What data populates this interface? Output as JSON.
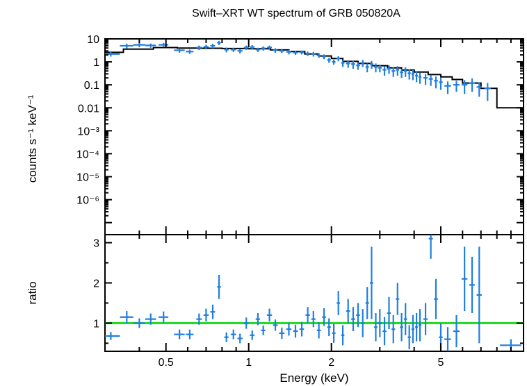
{
  "chart_data": {
    "type": "scatter",
    "title": "Swift–XRT WT spectrum of GRB 050820A",
    "xlabel": "Energy (keV)",
    "xscale": "log",
    "xlim": [
      0.3,
      10
    ],
    "x_ticks": [
      {
        "v": 0.5,
        "label": "0.5"
      },
      {
        "v": 1,
        "label": "1"
      },
      {
        "v": 2,
        "label": "2"
      },
      {
        "v": 5,
        "label": "5"
      }
    ],
    "colors": {
      "data": "#1f7fe0",
      "model": "#000000",
      "unity": "#22dd22"
    },
    "panels": [
      {
        "name": "spectrum",
        "ylabel": "counts s⁻¹ keV⁻¹",
        "yscale": "log",
        "ylim": [
          3e-08,
          10
        ],
        "y_ticks": [
          {
            "v": 10,
            "label": "10"
          },
          {
            "v": 1,
            "label": "1"
          },
          {
            "v": 0.1,
            "label": "0.1"
          },
          {
            "v": 0.01,
            "label": "0.01"
          },
          {
            "v": 0.001,
            "label": "10⁻³"
          },
          {
            "v": 0.0001,
            "label": "10⁻⁴"
          },
          {
            "v": 1e-05,
            "label": "10⁻⁵"
          },
          {
            "v": 1e-06,
            "label": "10⁻⁶"
          }
        ],
        "model_steps": [
          [
            0.3,
            2.6
          ],
          [
            0.35,
            3.6
          ],
          [
            0.45,
            4.2
          ],
          [
            0.55,
            4.0
          ],
          [
            0.65,
            3.9
          ],
          [
            0.8,
            3.8
          ],
          [
            1.0,
            3.7
          ],
          [
            1.2,
            3.3
          ],
          [
            1.4,
            2.8
          ],
          [
            1.6,
            2.2
          ],
          [
            1.8,
            1.8
          ],
          [
            2.0,
            1.4
          ],
          [
            2.2,
            1.05
          ],
          [
            2.5,
            0.85
          ],
          [
            2.8,
            0.68
          ],
          [
            3.2,
            0.55
          ],
          [
            3.6,
            0.44
          ],
          [
            4.0,
            0.36
          ],
          [
            4.5,
            0.28
          ],
          [
            5.0,
            0.22
          ],
          [
            5.5,
            0.17
          ],
          [
            6.0,
            0.12
          ],
          [
            7.0,
            0.07
          ],
          [
            8.0,
            0.01
          ],
          [
            10.0,
            0.01
          ]
        ],
        "points": [
          [
            0.315,
            2.2,
            0.025,
            0.5
          ],
          [
            0.36,
            5.0,
            0.02,
            1.2
          ],
          [
            0.4,
            5.5,
            0.02,
            1.2
          ],
          [
            0.44,
            5.2,
            0.02,
            1.1
          ],
          [
            0.49,
            5.5,
            0.02,
            1.2
          ],
          [
            0.56,
            3.2,
            0.025,
            0.7
          ],
          [
            0.61,
            2.8,
            0.02,
            0.6
          ],
          [
            0.66,
            4.2,
            0.015,
            0.9
          ],
          [
            0.7,
            4.5,
            0.015,
            1.0
          ],
          [
            0.74,
            5.0,
            0.015,
            1.1
          ],
          [
            0.78,
            6.8,
            0.012,
            1.4
          ],
          [
            0.83,
            3.4,
            0.015,
            0.8
          ],
          [
            0.88,
            3.4,
            0.02,
            0.7
          ],
          [
            0.93,
            3.0,
            0.02,
            0.7
          ],
          [
            0.98,
            4.2,
            0.02,
            0.9
          ],
          [
            1.03,
            4.4,
            0.02,
            0.9
          ],
          [
            1.08,
            3.4,
            0.02,
            0.7
          ],
          [
            1.13,
            3.9,
            0.02,
            0.8
          ],
          [
            1.19,
            4.2,
            0.025,
            0.9
          ],
          [
            1.25,
            3.2,
            0.025,
            0.7
          ],
          [
            1.32,
            3.0,
            0.03,
            0.6
          ],
          [
            1.4,
            2.7,
            0.03,
            0.6
          ],
          [
            1.48,
            2.5,
            0.03,
            0.5
          ],
          [
            1.56,
            2.6,
            0.03,
            0.5
          ],
          [
            1.64,
            2.3,
            0.03,
            0.5
          ],
          [
            1.72,
            2.2,
            0.03,
            0.5
          ],
          [
            1.8,
            1.9,
            0.03,
            0.4
          ],
          [
            1.88,
            1.7,
            0.03,
            0.4
          ],
          [
            1.96,
            1.2,
            0.03,
            0.3
          ],
          [
            2.04,
            1.0,
            0.03,
            0.25
          ],
          [
            2.12,
            1.4,
            0.03,
            0.35
          ],
          [
            2.2,
            0.9,
            0.03,
            0.3
          ],
          [
            2.3,
            0.85,
            0.04,
            0.3
          ],
          [
            2.4,
            0.8,
            0.04,
            0.3
          ],
          [
            2.5,
            0.7,
            0.04,
            0.25
          ],
          [
            2.6,
            0.9,
            0.04,
            0.3
          ],
          [
            2.7,
            0.6,
            0.04,
            0.25
          ],
          [
            2.8,
            0.8,
            0.04,
            0.3
          ],
          [
            2.9,
            0.6,
            0.04,
            0.25
          ],
          [
            3.0,
            0.55,
            0.05,
            0.2
          ],
          [
            3.12,
            0.45,
            0.05,
            0.2
          ],
          [
            3.24,
            0.5,
            0.05,
            0.2
          ],
          [
            3.36,
            0.4,
            0.05,
            0.18
          ],
          [
            3.48,
            0.45,
            0.05,
            0.2
          ],
          [
            3.6,
            0.35,
            0.05,
            0.15
          ],
          [
            3.72,
            0.4,
            0.05,
            0.18
          ],
          [
            3.84,
            0.32,
            0.05,
            0.15
          ],
          [
            3.96,
            0.3,
            0.05,
            0.14
          ],
          [
            4.08,
            0.25,
            0.05,
            0.12
          ],
          [
            4.2,
            0.22,
            0.05,
            0.11
          ],
          [
            4.4,
            0.2,
            0.08,
            0.1
          ],
          [
            4.6,
            0.18,
            0.08,
            0.09
          ],
          [
            4.8,
            0.15,
            0.08,
            0.08
          ],
          [
            5.0,
            0.13,
            0.08,
            0.07
          ],
          [
            5.3,
            0.09,
            0.15,
            0.05
          ],
          [
            5.7,
            0.1,
            0.15,
            0.05
          ],
          [
            6.1,
            0.1,
            0.15,
            0.06
          ],
          [
            6.5,
            0.12,
            0.15,
            0.07
          ],
          [
            6.9,
            0.08,
            0.15,
            0.05
          ],
          [
            7.4,
            0.07,
            0.2,
            0.05
          ]
        ]
      },
      {
        "name": "ratio",
        "ylabel": "ratio",
        "yscale": "linear",
        "ylim": [
          0.3,
          3.2
        ],
        "y_ticks": [
          {
            "v": 1,
            "label": "1"
          },
          {
            "v": 2,
            "label": "2"
          },
          {
            "v": 3,
            "label": "3"
          }
        ],
        "unity_line": 1.0,
        "points": [
          [
            0.315,
            0.68,
            0.025,
            0.1
          ],
          [
            0.36,
            1.15,
            0.02,
            0.15
          ],
          [
            0.4,
            1.0,
            0.02,
            0.12
          ],
          [
            0.44,
            1.1,
            0.02,
            0.14
          ],
          [
            0.49,
            1.15,
            0.02,
            0.14
          ],
          [
            0.56,
            0.72,
            0.025,
            0.12
          ],
          [
            0.61,
            0.72,
            0.02,
            0.12
          ],
          [
            0.66,
            1.1,
            0.015,
            0.14
          ],
          [
            0.7,
            1.2,
            0.015,
            0.16
          ],
          [
            0.74,
            1.28,
            0.015,
            0.18
          ],
          [
            0.78,
            1.9,
            0.012,
            0.3
          ],
          [
            0.83,
            0.65,
            0.015,
            0.12
          ],
          [
            0.88,
            0.72,
            0.02,
            0.12
          ],
          [
            0.93,
            0.62,
            0.02,
            0.12
          ],
          [
            0.98,
            1.0,
            0.02,
            0.14
          ],
          [
            1.03,
            0.7,
            0.02,
            0.12
          ],
          [
            1.08,
            1.1,
            0.02,
            0.15
          ],
          [
            1.13,
            0.82,
            0.02,
            0.12
          ],
          [
            1.19,
            1.2,
            0.025,
            0.16
          ],
          [
            1.25,
            0.95,
            0.025,
            0.14
          ],
          [
            1.32,
            0.75,
            0.03,
            0.14
          ],
          [
            1.4,
            0.85,
            0.03,
            0.16
          ],
          [
            1.48,
            0.8,
            0.03,
            0.16
          ],
          [
            1.56,
            0.85,
            0.03,
            0.18
          ],
          [
            1.64,
            1.2,
            0.03,
            0.2
          ],
          [
            1.72,
            1.1,
            0.03,
            0.2
          ],
          [
            1.8,
            0.82,
            0.03,
            0.2
          ],
          [
            1.88,
            1.15,
            0.03,
            0.22
          ],
          [
            1.96,
            0.9,
            0.03,
            0.22
          ],
          [
            2.04,
            0.75,
            0.03,
            0.24
          ],
          [
            2.12,
            1.5,
            0.03,
            0.3
          ],
          [
            2.2,
            0.7,
            0.03,
            0.25
          ],
          [
            2.3,
            1.3,
            0.04,
            0.3
          ],
          [
            2.4,
            1.1,
            0.04,
            0.3
          ],
          [
            2.5,
            1.2,
            0.04,
            0.3
          ],
          [
            2.6,
            1.0,
            0.04,
            0.35
          ],
          [
            2.7,
            1.5,
            0.04,
            0.4
          ],
          [
            2.8,
            2.0,
            0.04,
            0.9
          ],
          [
            2.9,
            0.9,
            0.04,
            0.35
          ],
          [
            3.0,
            1.0,
            0.05,
            0.35
          ],
          [
            3.12,
            0.8,
            0.05,
            0.35
          ],
          [
            3.24,
            1.25,
            0.05,
            0.4
          ],
          [
            3.36,
            0.85,
            0.05,
            0.35
          ],
          [
            3.48,
            1.6,
            0.05,
            0.4
          ],
          [
            3.6,
            0.9,
            0.05,
            0.35
          ],
          [
            3.72,
            1.1,
            0.05,
            0.4
          ],
          [
            3.84,
            0.65,
            0.05,
            0.3
          ],
          [
            3.96,
            0.85,
            0.05,
            0.35
          ],
          [
            4.08,
            0.9,
            0.05,
            0.35
          ],
          [
            4.2,
            0.95,
            0.05,
            0.4
          ],
          [
            4.4,
            1.1,
            0.08,
            0.4
          ],
          [
            4.6,
            3.1,
            0.08,
            0.5
          ],
          [
            4.8,
            1.6,
            0.08,
            0.5
          ],
          [
            5.0,
            0.65,
            0.08,
            0.35
          ],
          [
            5.3,
            0.6,
            0.15,
            0.3
          ],
          [
            5.7,
            0.8,
            0.15,
            0.4
          ],
          [
            6.1,
            2.1,
            0.15,
            0.8
          ],
          [
            6.5,
            1.95,
            0.15,
            0.7
          ],
          [
            6.9,
            1.7,
            0.15,
            1.2
          ],
          [
            9.0,
            0.45,
            0.8,
            0.15
          ]
        ]
      }
    ]
  }
}
